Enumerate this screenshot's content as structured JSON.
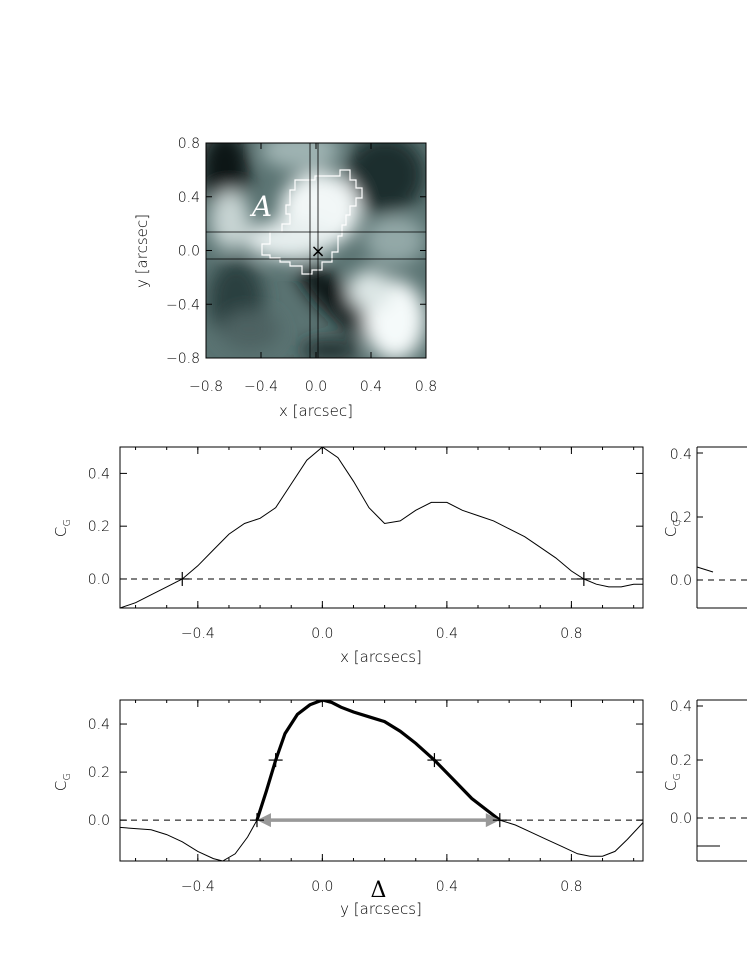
{
  "chart_data": [
    {
      "type": "heatmap",
      "xlabel": "x [arcsec]",
      "ylabel": "y [arcsec]",
      "xlim": [
        -0.8,
        0.8
      ],
      "ylim": [
        -0.8,
        0.8
      ],
      "xticks": [
        "−0.8",
        "−0.4",
        "0.0",
        "0.4",
        "0.8"
      ],
      "yticks": [
        "0.8",
        "0.4",
        "0.0",
        "−0.4",
        "−0.8"
      ],
      "annotation": "A",
      "marker": "×",
      "crosshair": {
        "x": [
          -0.05,
          0.0
        ],
        "y": [
          0.15,
          -0.05
        ]
      }
    },
    {
      "type": "line",
      "xlabel": "x [arcsecs]",
      "ylabel": "C_G",
      "xlim": [
        -0.65,
        1.03
      ],
      "ylim": [
        -0.11,
        0.5
      ],
      "xticks": [
        "−0.4",
        "0.0",
        "0.4",
        "0.8"
      ],
      "yticks": [
        "0.0",
        "0.2",
        "0.4"
      ],
      "zero_markers_x": [
        -0.45,
        0.84
      ],
      "series": [
        {
          "x": [
            -0.65,
            -0.6,
            -0.55,
            -0.5,
            -0.45,
            -0.4,
            -0.35,
            -0.3,
            -0.25,
            -0.2,
            -0.15,
            -0.1,
            -0.05,
            0.0,
            0.05,
            0.1,
            0.15,
            0.2,
            0.25,
            0.3,
            0.35,
            0.4,
            0.45,
            0.5,
            0.55,
            0.6,
            0.65,
            0.7,
            0.75,
            0.8,
            0.84,
            0.88,
            0.92,
            0.96,
            1.0,
            1.03
          ],
          "y": [
            -0.11,
            -0.09,
            -0.06,
            -0.03,
            0.0,
            0.05,
            0.11,
            0.17,
            0.21,
            0.23,
            0.27,
            0.36,
            0.45,
            0.5,
            0.46,
            0.37,
            0.27,
            0.21,
            0.22,
            0.26,
            0.29,
            0.29,
            0.26,
            0.24,
            0.22,
            0.19,
            0.16,
            0.12,
            0.08,
            0.03,
            0.0,
            -0.02,
            -0.03,
            -0.03,
            -0.02,
            -0.02
          ]
        }
      ]
    },
    {
      "type": "line",
      "xlabel": "y [arcsecs]",
      "ylabel": "C_G",
      "xlim": [
        -0.65,
        1.03
      ],
      "ylim": [
        -0.17,
        0.5
      ],
      "xticks": [
        "−0.4",
        "0.0",
        "0.4",
        "0.8"
      ],
      "yticks": [
        "0.0",
        "0.2",
        "0.4"
      ],
      "annotation": "Δ",
      "delta_range": [
        -0.21,
        0.57
      ],
      "plus_markers": [
        [
          -0.21,
          0.0
        ],
        [
          -0.15,
          0.25
        ],
        [
          0.36,
          0.25
        ],
        [
          0.57,
          0.0
        ]
      ],
      "series": [
        {
          "x": [
            -0.65,
            -0.55,
            -0.5,
            -0.45,
            -0.4,
            -0.35,
            -0.32,
            -0.28,
            -0.24,
            -0.21
          ],
          "y": [
            -0.03,
            -0.04,
            -0.06,
            -0.09,
            -0.13,
            -0.16,
            -0.17,
            -0.14,
            -0.07,
            0.0
          ]
        },
        {
          "x": [
            -0.21,
            -0.18,
            -0.15,
            -0.12,
            -0.08,
            -0.04,
            0.0,
            0.03,
            0.06,
            0.1,
            0.15,
            0.2,
            0.25,
            0.3,
            0.36,
            0.42,
            0.48,
            0.53,
            0.57
          ],
          "y": [
            0.0,
            0.12,
            0.25,
            0.36,
            0.44,
            0.48,
            0.5,
            0.49,
            0.47,
            0.45,
            0.43,
            0.41,
            0.37,
            0.32,
            0.25,
            0.17,
            0.09,
            0.04,
            0.0
          ]
        },
        {
          "x": [
            0.57,
            0.62,
            0.67,
            0.72,
            0.77,
            0.82,
            0.86,
            0.9,
            0.94,
            0.98,
            1.03
          ],
          "y": [
            0.0,
            -0.02,
            -0.05,
            -0.08,
            -0.11,
            -0.14,
            -0.15,
            -0.15,
            -0.13,
            -0.08,
            -0.01
          ]
        }
      ]
    },
    {
      "type": "line",
      "ylabel": "C_G",
      "yticks": [
        "0.0",
        "0.2",
        "0.4"
      ]
    },
    {
      "type": "line",
      "ylabel": "C_G",
      "yticks": [
        "0.0",
        "0.2",
        "0.4"
      ]
    }
  ]
}
